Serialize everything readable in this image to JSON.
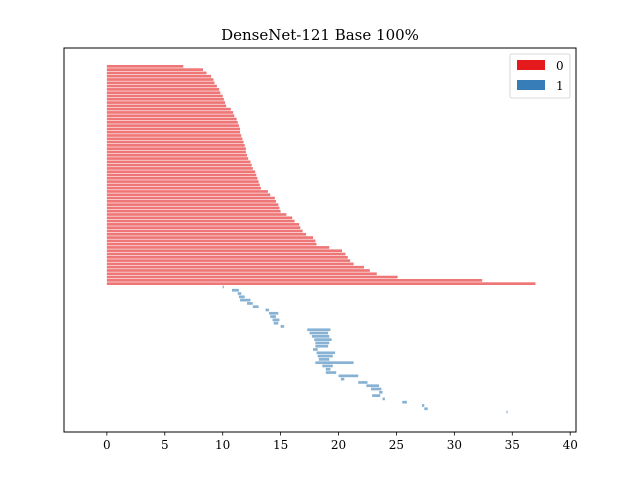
{
  "chart_data": {
    "type": "bar",
    "orientation": "horizontal",
    "title": "DenseNet-121 Base 100%",
    "xlabel": "",
    "ylabel": "",
    "xlim": [
      -3.7,
      40.5
    ],
    "xticks": [
      0,
      5,
      10,
      15,
      20,
      25,
      30,
      35,
      40
    ],
    "grid": false,
    "legend_placement": "top-right",
    "legend": [
      {
        "label": "0",
        "color": "#e41a1c"
      },
      {
        "label": "1",
        "color": "#377eb8"
      }
    ],
    "series": [
      {
        "name": "0",
        "color": "#e41a1c",
        "alpha": 0.6,
        "bars": [
          [
            0,
            6.6
          ],
          [
            0,
            8.3
          ],
          [
            0,
            8.6
          ],
          [
            0,
            9.0
          ],
          [
            0,
            9.2
          ],
          [
            0,
            9.3
          ],
          [
            0,
            9.5
          ],
          [
            0,
            9.7
          ],
          [
            0,
            9.8
          ],
          [
            0,
            10.0
          ],
          [
            0,
            10.1
          ],
          [
            0,
            10.2
          ],
          [
            0,
            10.3
          ],
          [
            0,
            10.7
          ],
          [
            0,
            10.9
          ],
          [
            0,
            11.0
          ],
          [
            0,
            11.2
          ],
          [
            0,
            11.3
          ],
          [
            0,
            11.4
          ],
          [
            0,
            11.5
          ],
          [
            0,
            11.5
          ],
          [
            0,
            11.6
          ],
          [
            0,
            11.7
          ],
          [
            0,
            11.8
          ],
          [
            0,
            11.9
          ],
          [
            0,
            12.0
          ],
          [
            0,
            12.0
          ],
          [
            0,
            12.1
          ],
          [
            0,
            12.2
          ],
          [
            0,
            12.4
          ],
          [
            0,
            12.5
          ],
          [
            0,
            12.6
          ],
          [
            0,
            12.8
          ],
          [
            0,
            12.9
          ],
          [
            0,
            13.0
          ],
          [
            0,
            13.1
          ],
          [
            0,
            13.2
          ],
          [
            0,
            13.3
          ],
          [
            0,
            13.9
          ],
          [
            0,
            14.1
          ],
          [
            0,
            14.5
          ],
          [
            0,
            14.6
          ],
          [
            0,
            14.8
          ],
          [
            0,
            14.9
          ],
          [
            0,
            15.0
          ],
          [
            0,
            15.5
          ],
          [
            0,
            16.0
          ],
          [
            0,
            16.2
          ],
          [
            0,
            16.6
          ],
          [
            0,
            16.7
          ],
          [
            0,
            16.9
          ],
          [
            0,
            17.2
          ],
          [
            0,
            17.8
          ],
          [
            0,
            18.0
          ],
          [
            0,
            18.1
          ],
          [
            0,
            19.2
          ],
          [
            0,
            20.3
          ],
          [
            0,
            20.6
          ],
          [
            0,
            20.8
          ],
          [
            0,
            21.0
          ],
          [
            0,
            21.3
          ],
          [
            0,
            22.2
          ],
          [
            0,
            22.7
          ],
          [
            0,
            23.3
          ],
          [
            0,
            25.1
          ],
          [
            0,
            32.4
          ],
          [
            0,
            37.0
          ]
        ]
      },
      {
        "name": "1",
        "color": "#377eb8",
        "alpha": 0.6,
        "bars": [
          [
            10.0,
            10.1
          ],
          [
            10.8,
            11.4
          ],
          [
            11.3,
            11.6
          ],
          [
            11.4,
            11.9
          ],
          [
            11.5,
            12.4
          ],
          [
            12.1,
            12.6
          ],
          [
            12.6,
            13.1
          ],
          [
            13.7,
            14.0
          ],
          [
            14.0,
            14.8
          ],
          [
            14.1,
            14.6
          ],
          [
            14.3,
            14.9
          ],
          [
            14.4,
            14.8
          ],
          [
            15.0,
            15.3
          ],
          [
            17.3,
            19.3
          ],
          [
            17.5,
            19.1
          ],
          [
            17.7,
            19.2
          ],
          [
            17.9,
            19.4
          ],
          [
            18.0,
            19.2
          ],
          [
            18.0,
            19.1
          ],
          [
            17.8,
            18.2
          ],
          [
            18.1,
            19.7
          ],
          [
            18.2,
            19.5
          ],
          [
            18.3,
            19.2
          ],
          [
            18.0,
            21.3
          ],
          [
            18.6,
            19.5
          ],
          [
            18.9,
            19.3
          ],
          [
            18.9,
            19.8
          ],
          [
            20.0,
            21.7
          ],
          [
            20.2,
            20.5
          ],
          [
            21.7,
            22.5
          ],
          [
            22.4,
            23.5
          ],
          [
            22.8,
            23.7
          ],
          [
            23.5,
            23.8
          ],
          [
            22.9,
            23.6
          ],
          [
            23.8,
            24.0
          ],
          [
            25.5,
            25.9
          ],
          [
            27.2,
            27.4
          ],
          [
            27.4,
            27.7
          ],
          [
            34.5,
            34.6
          ]
        ]
      }
    ]
  }
}
